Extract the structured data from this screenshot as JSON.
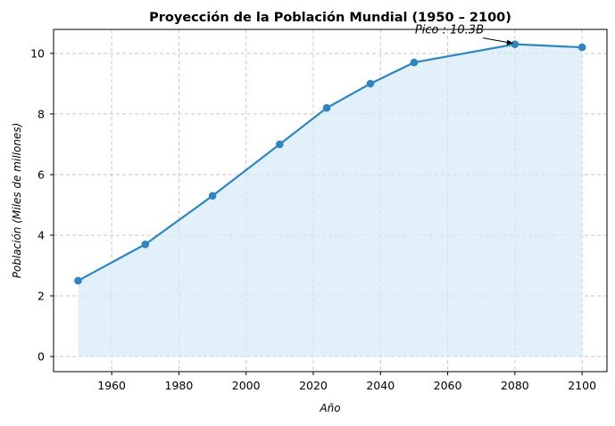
{
  "chart_data": {
    "type": "line",
    "title": "Proyección de la Población Mundial (1950 – 2100)",
    "xlabel": "Año",
    "ylabel": "Población (Miles de millones)",
    "x": [
      1950,
      1970,
      1990,
      2010,
      2024,
      2037,
      2050,
      2080,
      2100
    ],
    "values": [
      2.5,
      3.7,
      5.3,
      7.0,
      8.2,
      9.0,
      9.7,
      10.3,
      10.2
    ],
    "xlim": [
      1942.7,
      2107.4
    ],
    "ylim": [
      -0.5,
      10.79
    ],
    "xticks": [
      1960,
      1980,
      2000,
      2020,
      2040,
      2060,
      2080,
      2100
    ],
    "yticks": [
      0,
      2,
      4,
      6,
      8,
      10
    ],
    "grid": true,
    "fill_under": true,
    "markers": true,
    "annotation": {
      "text": "Pico : 10.3B",
      "point": [
        2080,
        10.3
      ],
      "text_at": [
        2050,
        10.8
      ]
    },
    "colors": {
      "line": "#2e86c1",
      "fill": "#d6eaf8",
      "grid": "#c8c8c8"
    }
  }
}
